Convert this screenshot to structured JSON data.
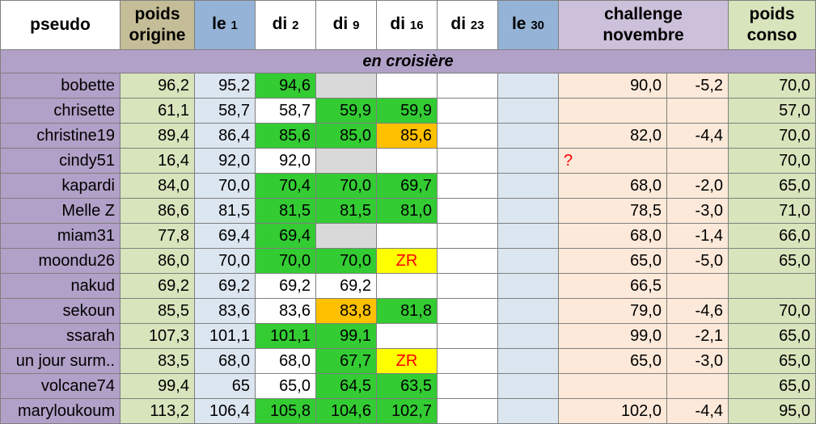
{
  "headers": {
    "pseudo": "pseudo",
    "poids_origine_1": "poids",
    "poids_origine_2": "origine",
    "le1": "le",
    "le1_sub": "1",
    "di2": "di",
    "di2_sub": "2",
    "di9": "di",
    "di9_sub": "9",
    "di16": "di",
    "di16_sub": "16",
    "di23": "di",
    "di23_sub": "23",
    "le30": "le",
    "le30_sub": "30",
    "challenge_1": "challenge",
    "challenge_2": "novembre",
    "conso_1": "poids",
    "conso_2": "conso"
  },
  "band_label": "en croisière",
  "colors": {
    "name_bg": "#b1a0c7",
    "origin_bg": "#d8e4bc",
    "week_bg": "#dce6f1",
    "challenge_bg": "#fde9d9",
    "green_loss": "#33cc33",
    "orange_gain": "#ffc000",
    "yellow_zr": "#ffff00",
    "gray_missing": "#d9d9d9",
    "red_text": "#ff0000"
  },
  "rows": [
    {
      "name": "bobette",
      "orig": "96,2",
      "le1": "95,2",
      "di2": "94,6",
      "di9": "",
      "di16": "",
      "di23": "",
      "le30": "",
      "goal": "90,0",
      "diff": "-5,2",
      "conso": "70,0",
      "styles": {
        "di2": "green",
        "di9": "gray"
      }
    },
    {
      "name": "chrisette",
      "orig": "61,1",
      "le1": "58,7",
      "di2": "58,7",
      "di9": "59,9",
      "di16": "59,9",
      "di23": "",
      "le30": "",
      "goal": "",
      "diff": "",
      "conso": "57,0",
      "styles": {
        "di9": "green",
        "di16": "green"
      }
    },
    {
      "name": "christine19",
      "orig": "89,4",
      "le1": "86,4",
      "di2": "85,6",
      "di9": "85,0",
      "di16": "85,6",
      "di23": "",
      "le30": "",
      "goal": "82,0",
      "diff": "-4,4",
      "conso": "70,0",
      "styles": {
        "di2": "green",
        "di9": "green",
        "di16": "orange"
      }
    },
    {
      "name": "cindy51",
      "orig": "16,4",
      "le1": "92,0",
      "di2": "92,0",
      "di9": "",
      "di16": "",
      "di23": "",
      "le30": "",
      "goal": "?",
      "diff": "",
      "conso": "70,0",
      "styles": {
        "di9": "gray",
        "goal": "question"
      }
    },
    {
      "name": "kapardi",
      "orig": "84,0",
      "le1": "70,0",
      "di2": "70,4",
      "di9": "70,0",
      "di16": "69,7",
      "di23": "",
      "le30": "",
      "goal": "68,0",
      "diff": "-2,0",
      "conso": "65,0",
      "styles": {
        "di2": "green",
        "di9": "green",
        "di16": "green"
      }
    },
    {
      "name": "Melle Z",
      "orig": "86,6",
      "le1": "81,5",
      "di2": "81,5",
      "di9": "81,5",
      "di16": "81,0",
      "di23": "",
      "le30": "",
      "goal": "78,5",
      "diff": "-3,0",
      "conso": "71,0",
      "styles": {
        "di2": "green",
        "di9": "green",
        "di16": "green"
      }
    },
    {
      "name": "miam31",
      "orig": "77,8",
      "le1": "69,4",
      "di2": "69,4",
      "di9": "",
      "di16": "",
      "di23": "",
      "le30": "",
      "goal": "68,0",
      "diff": "-1,4",
      "conso": "66,0",
      "styles": {
        "di2": "green",
        "di9": "gray"
      }
    },
    {
      "name": "moondu26",
      "orig": "86,0",
      "le1": "70,0",
      "di2": "70,0",
      "di9": "70,0",
      "di16": "ZR",
      "di23": "",
      "le30": "",
      "goal": "65,0",
      "diff": "-5,0",
      "conso": "65,0",
      "styles": {
        "di2": "green",
        "di9": "green",
        "di16": "zr"
      }
    },
    {
      "name": "nakud",
      "orig": "69,2",
      "le1": "69,2",
      "di2": "69,2",
      "di9": "69,2",
      "di16": "",
      "di23": "",
      "le30": "",
      "goal": "66,5",
      "diff": "",
      "conso": "",
      "styles": {}
    },
    {
      "name": "sekoun",
      "orig": "85,5",
      "le1": "83,6",
      "di2": "83,6",
      "di9": "83,8",
      "di16": "81,8",
      "di23": "",
      "le30": "",
      "goal": "79,0",
      "diff": "-4,6",
      "conso": "70,0",
      "styles": {
        "di9": "orange",
        "di16": "green"
      }
    },
    {
      "name": "ssarah",
      "orig": "107,3",
      "le1": "101,1",
      "di2": "101,1",
      "di9": "99,1",
      "di16": "",
      "di23": "",
      "le30": "",
      "goal": "99,0",
      "diff": "-2,1",
      "conso": "65,0",
      "styles": {
        "di2": "green",
        "di9": "green"
      }
    },
    {
      "name": "un jour surm..",
      "orig": "83,5",
      "le1": "68,0",
      "di2": "68,0",
      "di9": "67,7",
      "di16": "ZR",
      "di23": "",
      "le30": "",
      "goal": "65,0",
      "diff": "-3,0",
      "conso": "65,0",
      "styles": {
        "di9": "green",
        "di16": "zr"
      }
    },
    {
      "name": "volcane74",
      "orig": "99,4",
      "le1": "65",
      "di2": "65,0",
      "di9": "64,5",
      "di16": "63,5",
      "di23": "",
      "le30": "",
      "goal": "",
      "diff": "",
      "conso": "65,0",
      "styles": {
        "di9": "green",
        "di16": "green"
      }
    },
    {
      "name": "maryloukoum",
      "orig": "113,2",
      "le1": "106,4",
      "di2": "105,8",
      "di9": "104,6",
      "di16": "102,7",
      "di23": "",
      "le30": "",
      "goal": "102,0",
      "diff": "-4,4",
      "conso": "95,0",
      "styles": {
        "di2": "green",
        "di9": "green",
        "di16": "green"
      }
    }
  ]
}
